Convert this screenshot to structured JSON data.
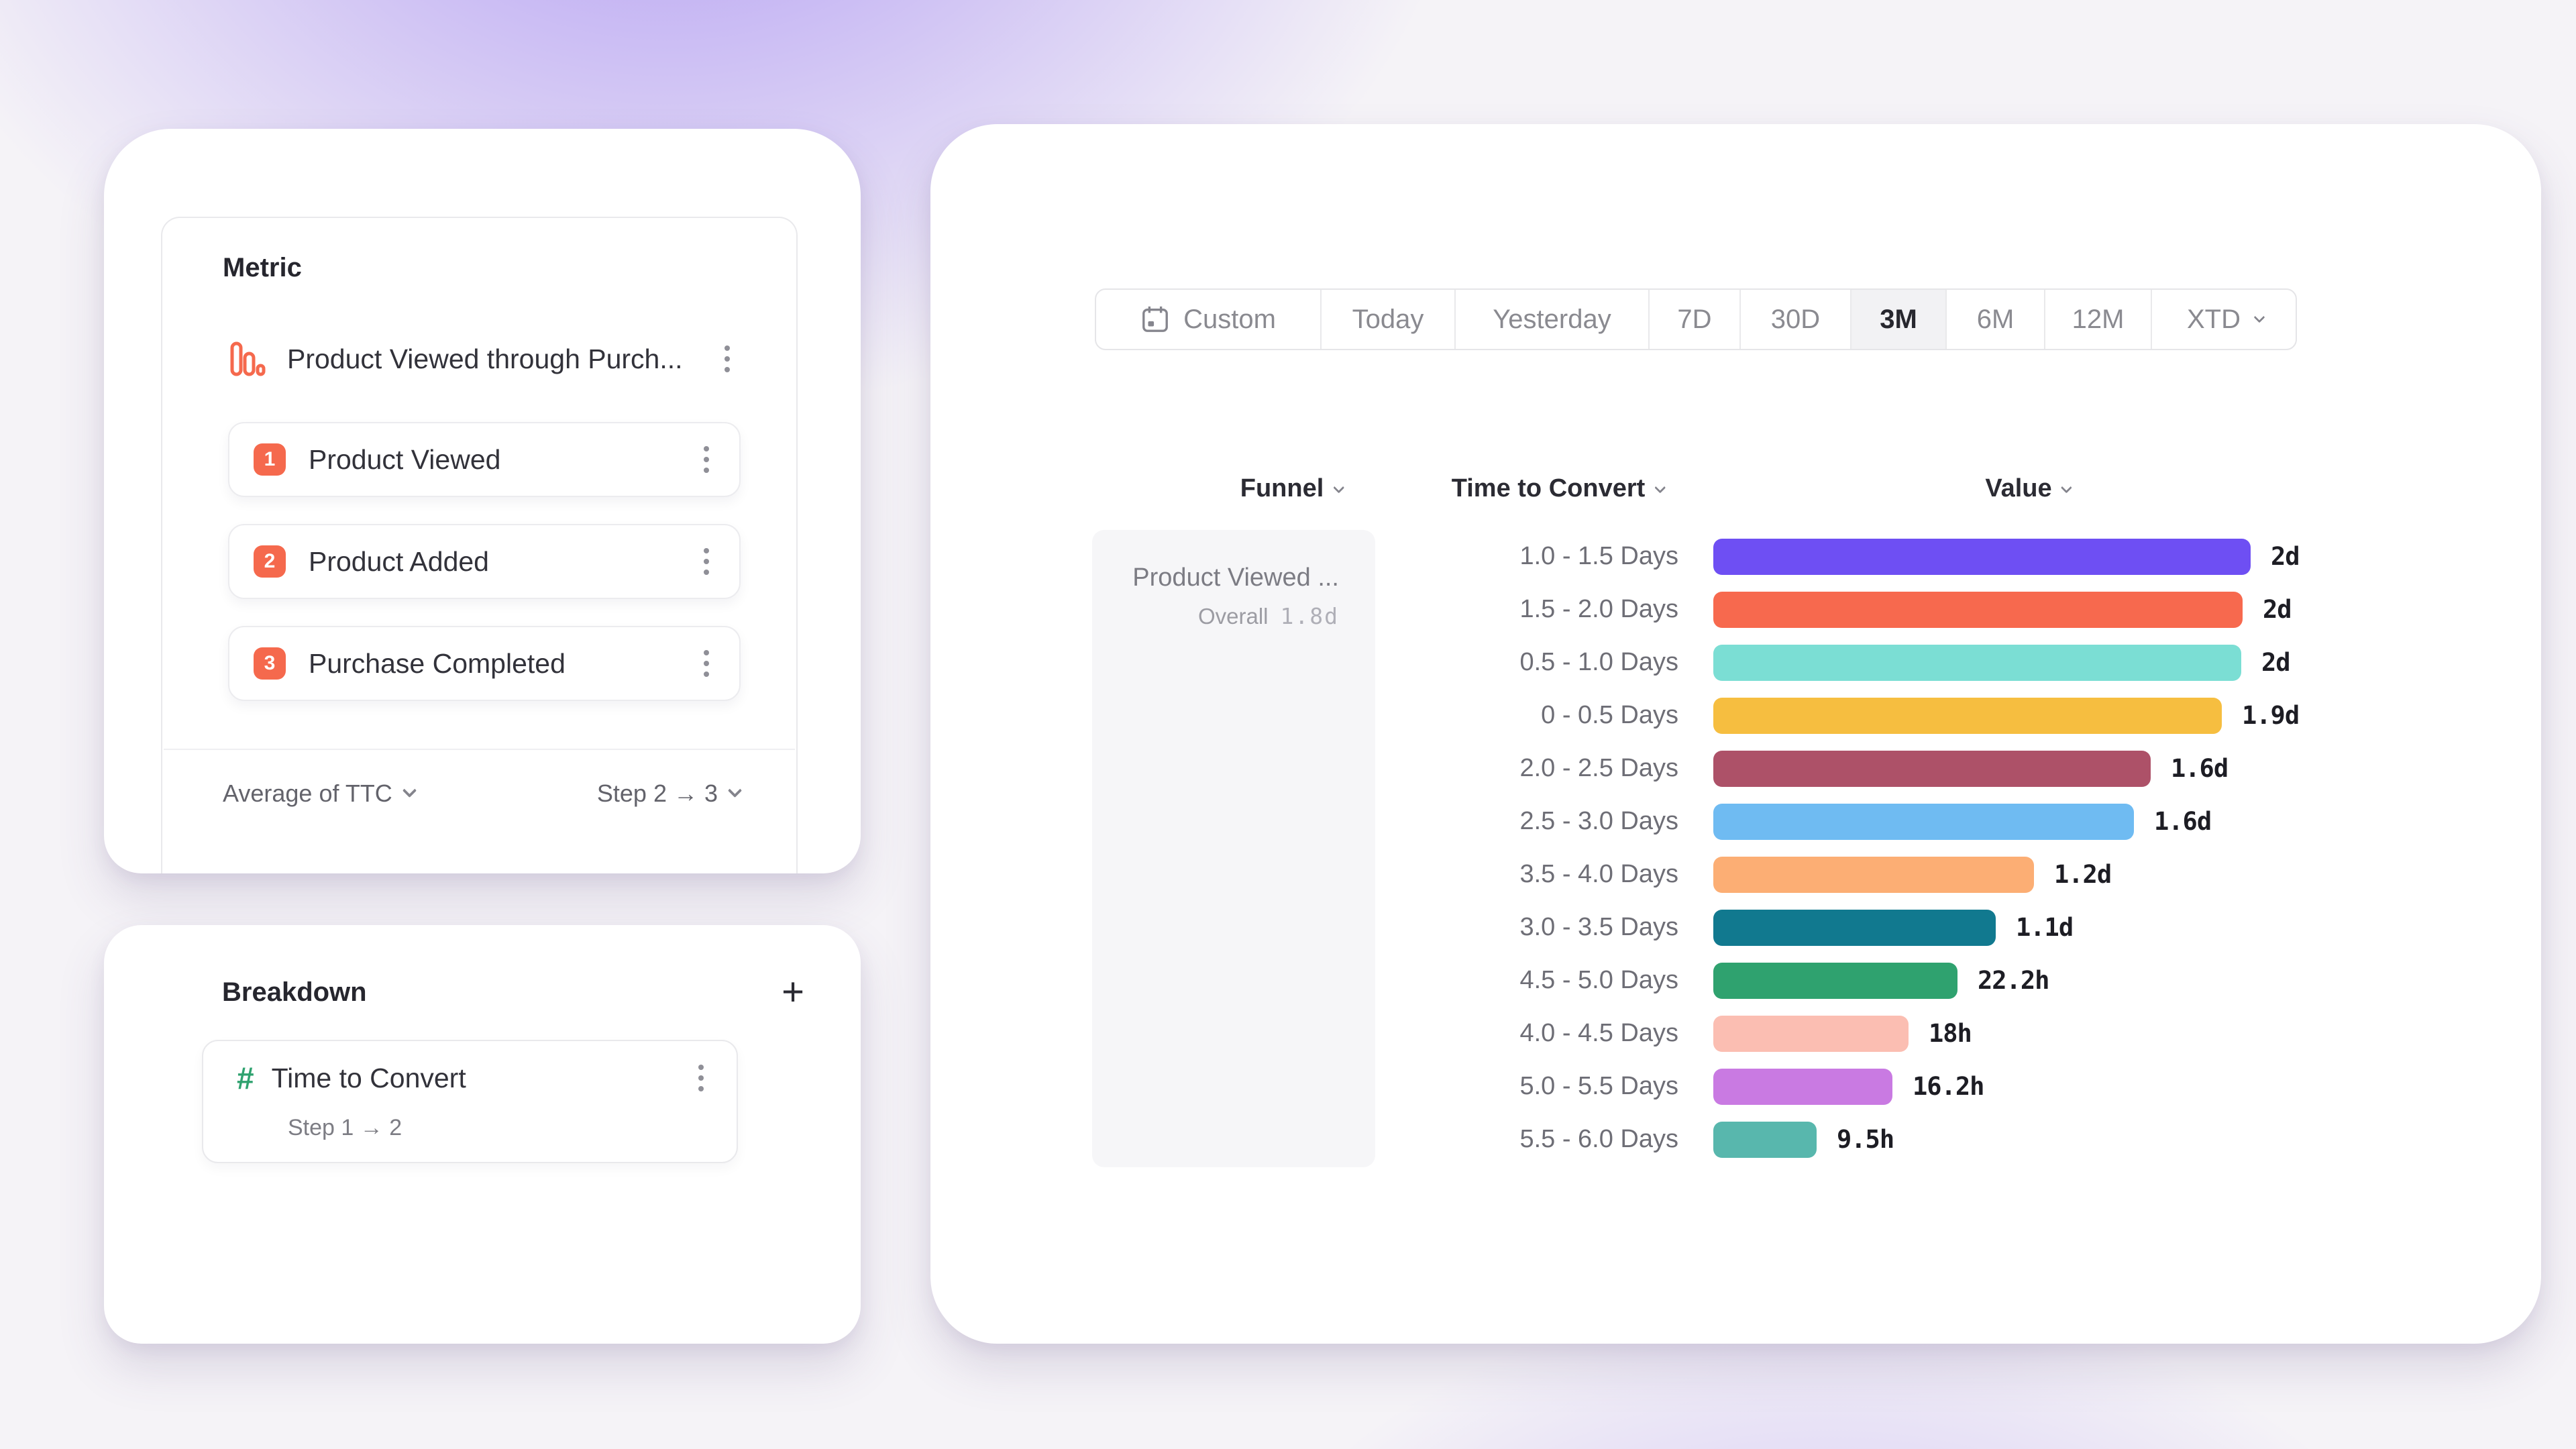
{
  "theme": {
    "accent_orange": "#F5694D",
    "accent_green": "#2FA26F",
    "selected_segment_bg": "#F2F2F4",
    "card_bg": "#FFFFFF",
    "background_purple": "#8664EE"
  },
  "left_panel": {
    "metric_card": {
      "title": "Metric",
      "metric": {
        "icon": "funnel-bars-icon",
        "name": "Product Viewed through Purch..."
      },
      "steps": [
        {
          "num": "1",
          "label": "Product Viewed"
        },
        {
          "num": "2",
          "label": "Product Added"
        },
        {
          "num": "3",
          "label": "Purchase Completed"
        }
      ],
      "footer": {
        "aggregation": "Average of TTC",
        "step_range": "Step 2 → 3"
      }
    },
    "breakdown_card": {
      "title": "Breakdown",
      "add_button": "+",
      "item": {
        "icon": "hash-icon",
        "name": "Time to Convert",
        "subtitle": "Step 1 → 2"
      }
    }
  },
  "report": {
    "date_picker": {
      "options": [
        "Custom",
        "Today",
        "Yesterday",
        "7D",
        "30D",
        "3M",
        "6M",
        "12M",
        "XTD"
      ],
      "selected": "3M"
    },
    "columns": {
      "funnel": "Funnel",
      "breakdown": "Time to Convert",
      "value": "Value"
    },
    "funnel_cell": {
      "name": "Product Viewed ...",
      "overall_label": "Overall",
      "overall_value": "1.8d"
    }
  },
  "chart_data": {
    "type": "bar",
    "orientation": "horizontal",
    "title": "",
    "xlabel": "Value",
    "ylabel": "Time to Convert",
    "legend": false,
    "categories": [
      "1.0 - 1.5 Days",
      "1.5 - 2.0 Days",
      "0.5 - 1.0 Days",
      "0 - 0.5 Days",
      "2.0 - 2.5 Days",
      "2.5 - 3.0 Days",
      "3.5 - 4.0 Days",
      "3.0 - 3.5 Days",
      "4.5 - 5.0 Days",
      "4.0 - 4.5 Days",
      "5.0 - 5.5 Days",
      "5.5 - 6.0 Days"
    ],
    "values_display": [
      "2d",
      "2d",
      "2d",
      "1.9d",
      "1.6d",
      "1.6d",
      "1.2d",
      "1.1d",
      "22.2h",
      "18h",
      "16.2h",
      "9.5h"
    ],
    "values_days": [
      2.0,
      2.0,
      2.0,
      1.9,
      1.6,
      1.6,
      1.2,
      1.1,
      0.93,
      0.75,
      0.68,
      0.4
    ],
    "bar_fractions": [
      1.0,
      0.985,
      0.982,
      0.946,
      0.814,
      0.783,
      0.597,
      0.526,
      0.454,
      0.363,
      0.333,
      0.192
    ],
    "colors": [
      "#6E4FF3",
      "#F7694E",
      "#7BDED4",
      "#F6BE40",
      "#AD5168",
      "#6FBBF2",
      "#FCAE74",
      "#11798F",
      "#2FA26F",
      "#FBBEB2",
      "#C97AE2",
      "#58B7AD"
    ],
    "xlim_days": [
      0,
      2.03
    ]
  }
}
